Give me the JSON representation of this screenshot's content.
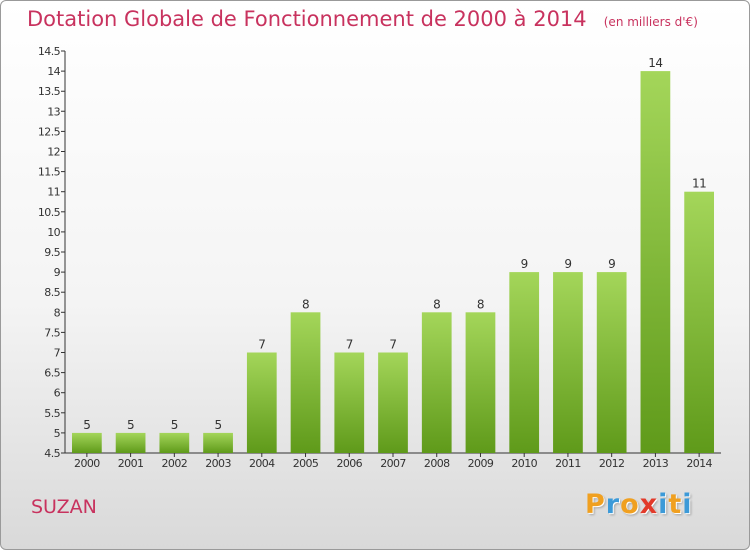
{
  "chart_data": {
    "type": "bar",
    "title": "Dotation Globale de Fonctionnement de 2000 à 2014",
    "subtitle": "(en milliers d'€)",
    "categories": [
      "2000",
      "2001",
      "2002",
      "2003",
      "2004",
      "2005",
      "2006",
      "2007",
      "2008",
      "2009",
      "2010",
      "2011",
      "2012",
      "2013",
      "2014"
    ],
    "values": [
      5,
      5,
      5,
      5,
      7,
      8,
      7,
      7,
      8,
      8,
      9,
      9,
      9,
      14,
      11
    ],
    "data_labels": [
      "5",
      "5",
      "5",
      "5",
      "7",
      "8",
      "7",
      "7",
      "8",
      "8",
      "9",
      "9",
      "9",
      "14",
      "11"
    ],
    "ylim": [
      4.5,
      14.5
    ],
    "yticks": [
      4.5,
      5,
      5.5,
      6,
      6.5,
      7,
      7.5,
      8,
      8.5,
      9,
      9.5,
      10,
      10.5,
      11,
      11.5,
      12,
      12.5,
      13,
      13.5,
      14,
      14.5
    ],
    "ytick_labels": [
      "4.5",
      "5",
      "5.5",
      "6",
      "6.5",
      "7",
      "7.5",
      "8",
      "8.5",
      "9",
      "9.5",
      "10",
      "10.5",
      "11",
      "11.5",
      "12",
      "12.5",
      "13",
      "13.5",
      "14",
      "14.5"
    ],
    "grid": false,
    "bar_color_light": "#a4d65a",
    "bar_color_dark": "#5f9a1a"
  },
  "footer": {
    "commune": "SUZAN"
  },
  "logo": {
    "letters": [
      "P",
      "r",
      "o",
      "x",
      "i",
      "t",
      "i"
    ],
    "colors": [
      "#f0a020",
      "#3c9ad8",
      "#f0a020",
      "#e23a2a",
      "#3c9ad8",
      "#f0a020",
      "#3c9ad8"
    ]
  }
}
